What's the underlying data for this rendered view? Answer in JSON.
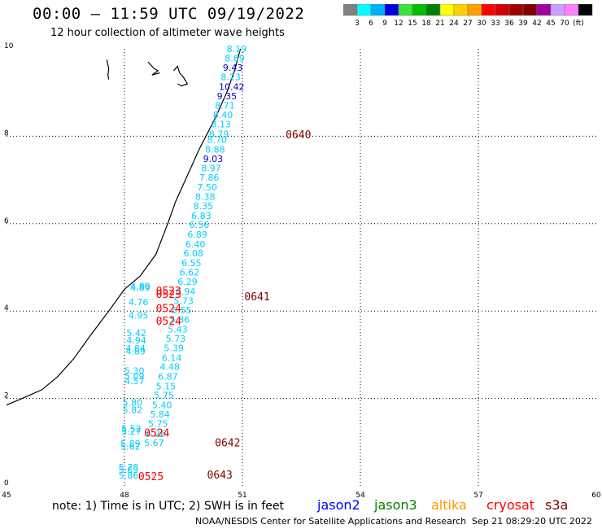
{
  "header": {
    "title": "00:00 – 11:59 UTC 09/19/2022",
    "subtitle": "12 hour collection of altimeter wave heights"
  },
  "colorbar": {
    "colors": [
      "#808080",
      "#00ffff",
      "#00b0ff",
      "#0000e0",
      "#40e040",
      "#00c000",
      "#008000",
      "#ffff00",
      "#ffd000",
      "#ffa000",
      "#ff0000",
      "#d00000",
      "#a00000",
      "#800000",
      "#a000a0",
      "#c8a0ff",
      "#ff80ff",
      "#000000"
    ],
    "labels": [
      "3",
      "6",
      "9",
      "12",
      "15",
      "18",
      "21",
      "24",
      "27",
      "30",
      "33",
      "36",
      "39",
      "42",
      "45",
      "70",
      "(ft)"
    ]
  },
  "footer": {
    "note": "note: 1) Time is in UTC; 2) SWH is in feet",
    "legend": [
      {
        "name": "jason2",
        "color": "#0000ff"
      },
      {
        "name": "jason3",
        "color": "#008000"
      },
      {
        "name": "altika",
        "color": "#ff9900"
      },
      {
        "name": "cryosat",
        "color": "#ff0000"
      },
      {
        "name": "s3a",
        "color": "#800000"
      }
    ],
    "credit": "NOAA/NESDIS Center for Satellite Applications and Research",
    "timestamp": "Sep 21 08:29:20 UTC 2022"
  },
  "chart_data": {
    "type": "scatter",
    "xlim": [
      45,
      60
    ],
    "ylim": [
      0,
      10
    ],
    "x_ticks": [
      "45",
      "48",
      "51",
      "54",
      "57",
      "60"
    ],
    "y_ticks": [
      "0",
      "2",
      "4",
      "6",
      "8",
      "10"
    ],
    "grid": true,
    "points": [
      {
        "x": 50.6,
        "y": 9.93,
        "label": "8.19",
        "color": "#00ccff"
      },
      {
        "x": 50.55,
        "y": 9.71,
        "label": "8.69",
        "color": "#00ccff"
      },
      {
        "x": 50.5,
        "y": 9.5,
        "label": "9.43",
        "color": "#0000cc"
      },
      {
        "x": 50.45,
        "y": 9.28,
        "label": "8.23",
        "color": "#00ccff"
      },
      {
        "x": 50.4,
        "y": 9.06,
        "label": "10.42",
        "color": "#0000cc"
      },
      {
        "x": 50.35,
        "y": 8.85,
        "label": "9.35",
        "color": "#0000cc"
      },
      {
        "x": 50.3,
        "y": 8.63,
        "label": "8.71",
        "color": "#00ccff"
      },
      {
        "x": 50.25,
        "y": 8.42,
        "label": "8.40",
        "color": "#00ccff"
      },
      {
        "x": 50.2,
        "y": 8.2,
        "label": "8.13",
        "color": "#00ccff"
      },
      {
        "x": 50.15,
        "y": 7.98,
        "label": "8.79",
        "color": "#00ccff"
      },
      {
        "x": 50.1,
        "y": 7.85,
        "label": "8.70",
        "color": "#00ccff"
      },
      {
        "x": 50.05,
        "y": 7.63,
        "label": "8.88",
        "color": "#00ccff"
      },
      {
        "x": 50.0,
        "y": 7.41,
        "label": "9.03",
        "color": "#0000cc"
      },
      {
        "x": 49.95,
        "y": 7.2,
        "label": "8.97",
        "color": "#00ccff"
      },
      {
        "x": 49.9,
        "y": 6.98,
        "label": "7.86",
        "color": "#00ccff"
      },
      {
        "x": 49.85,
        "y": 6.76,
        "label": "7.50",
        "color": "#00ccff"
      },
      {
        "x": 49.8,
        "y": 6.55,
        "label": "8.38",
        "color": "#00ccff"
      },
      {
        "x": 49.75,
        "y": 6.33,
        "label": "8.35",
        "color": "#00ccff"
      },
      {
        "x": 49.7,
        "y": 6.11,
        "label": "6.83",
        "color": "#00ccff"
      },
      {
        "x": 49.65,
        "y": 5.9,
        "label": "6.56",
        "color": "#00ccff"
      },
      {
        "x": 49.6,
        "y": 5.68,
        "label": "6.89",
        "color": "#00ccff"
      },
      {
        "x": 49.55,
        "y": 5.46,
        "label": "6.40",
        "color": "#00ccff"
      },
      {
        "x": 49.5,
        "y": 5.25,
        "label": "6.08",
        "color": "#00ccff"
      },
      {
        "x": 49.45,
        "y": 5.03,
        "label": "6.55",
        "color": "#00ccff"
      },
      {
        "x": 49.4,
        "y": 4.81,
        "label": "6.62",
        "color": "#00ccff"
      },
      {
        "x": 49.35,
        "y": 4.6,
        "label": "6.29",
        "color": "#00ccff"
      },
      {
        "x": 49.3,
        "y": 4.38,
        "label": "6.94",
        "color": "#00ccff"
      },
      {
        "x": 49.25,
        "y": 4.16,
        "label": "5.73",
        "color": "#00ccff"
      },
      {
        "x": 49.2,
        "y": 3.95,
        "label": "5.55",
        "color": "#00ccff"
      },
      {
        "x": 49.15,
        "y": 3.73,
        "label": "5.86",
        "color": "#00ccff"
      },
      {
        "x": 49.1,
        "y": 3.51,
        "label": "5.43",
        "color": "#00ccff"
      },
      {
        "x": 49.05,
        "y": 3.3,
        "label": "5.73",
        "color": "#00ccff"
      },
      {
        "x": 49.0,
        "y": 3.08,
        "label": "5.39",
        "color": "#00ccff"
      },
      {
        "x": 48.95,
        "y": 2.86,
        "label": "6.14",
        "color": "#00ccff"
      },
      {
        "x": 48.9,
        "y": 2.65,
        "label": "4.48",
        "color": "#00ccff"
      },
      {
        "x": 48.85,
        "y": 2.43,
        "label": "6.87",
        "color": "#00ccff"
      },
      {
        "x": 48.8,
        "y": 2.21,
        "label": "5.15",
        "color": "#00ccff"
      },
      {
        "x": 48.75,
        "y": 2.0,
        "label": "5.75",
        "color": "#00ccff"
      },
      {
        "x": 48.7,
        "y": 1.78,
        "label": "5.40",
        "color": "#00ccff"
      },
      {
        "x": 48.65,
        "y": 1.56,
        "label": "5.84",
        "color": "#00ccff"
      },
      {
        "x": 48.6,
        "y": 1.35,
        "label": "5.75",
        "color": "#00ccff"
      },
      {
        "x": 48.55,
        "y": 1.13,
        "label": "6.26",
        "color": "#00ccff"
      },
      {
        "x": 48.5,
        "y": 0.91,
        "label": "5.67",
        "color": "#00ccff"
      },
      {
        "x": 48.15,
        "y": 4.5,
        "label": "4.89",
        "color": "#00ccff"
      },
      {
        "x": 48.15,
        "y": 4.46,
        "label": "4.89",
        "color": "#00ccff"
      },
      {
        "x": 48.1,
        "y": 4.13,
        "label": "4.76",
        "color": "#00ccff"
      },
      {
        "x": 48.1,
        "y": 3.83,
        "label": "4.95",
        "color": "#00ccff"
      },
      {
        "x": 48.05,
        "y": 3.43,
        "label": "5.42",
        "color": "#00ccff"
      },
      {
        "x": 48.05,
        "y": 3.26,
        "label": "4.94",
        "color": "#00ccff"
      },
      {
        "x": 48.03,
        "y": 3.07,
        "label": "4.84",
        "color": "#00ccff"
      },
      {
        "x": 48.03,
        "y": 3.01,
        "label": "4.89",
        "color": "#00ccff"
      },
      {
        "x": 48.0,
        "y": 2.56,
        "label": "5.30",
        "color": "#00ccff"
      },
      {
        "x": 48.0,
        "y": 2.44,
        "label": "5.09",
        "color": "#00ccff"
      },
      {
        "x": 48.0,
        "y": 2.33,
        "label": "4.57",
        "color": "#00ccff"
      },
      {
        "x": 47.95,
        "y": 1.83,
        "label": "5.80",
        "color": "#00ccff"
      },
      {
        "x": 47.95,
        "y": 1.67,
        "label": "5.82",
        "color": "#00ccff"
      },
      {
        "x": 47.92,
        "y": 1.24,
        "label": "5.52",
        "color": "#00ccff"
      },
      {
        "x": 47.92,
        "y": 1.17,
        "label": "5.27",
        "color": "#00ccff"
      },
      {
        "x": 47.9,
        "y": 0.89,
        "label": "5.89",
        "color": "#00ccff"
      },
      {
        "x": 47.9,
        "y": 0.83,
        "label": "5.62",
        "color": "#00ccff"
      },
      {
        "x": 47.85,
        "y": 0.35,
        "label": "5.78",
        "color": "#00ccff"
      },
      {
        "x": 47.85,
        "y": 0.3,
        "label": "5.69",
        "color": "#00ccff"
      },
      {
        "x": 47.85,
        "y": 0.17,
        "label": "5.86",
        "color": "#00ccff"
      }
    ],
    "time_labels": [
      {
        "x": 52.1,
        "y": 7.95,
        "label": "0640",
        "color": "#800000"
      },
      {
        "x": 51.05,
        "y": 4.25,
        "label": "0641",
        "color": "#800000"
      },
      {
        "x": 50.3,
        "y": 0.9,
        "label": "0642",
        "color": "#800000"
      },
      {
        "x": 50.1,
        "y": 0.17,
        "label": "0643",
        "color": "#800000"
      },
      {
        "x": 48.8,
        "y": 4.38,
        "label": "0523",
        "color": "#ff0000"
      },
      {
        "x": 48.8,
        "y": 4.3,
        "label": "0523",
        "color": "#ff0000"
      },
      {
        "x": 48.8,
        "y": 3.98,
        "label": "0524",
        "color": "#ff0000"
      },
      {
        "x": 48.8,
        "y": 3.69,
        "label": "0524",
        "color": "#ff0000"
      },
      {
        "x": 48.5,
        "y": 1.13,
        "label": "0524",
        "color": "#ff0000"
      },
      {
        "x": 48.35,
        "y": 0.13,
        "label": "0525",
        "color": "#ff0000"
      }
    ],
    "coastline": [
      [
        45.0,
        1.85
      ],
      [
        45.4,
        2.0
      ],
      [
        45.9,
        2.2
      ],
      [
        46.3,
        2.5
      ],
      [
        46.7,
        2.9
      ],
      [
        47.1,
        3.4
      ],
      [
        47.6,
        4.0
      ],
      [
        48.0,
        4.5
      ],
      [
        48.4,
        4.8
      ],
      [
        48.8,
        5.3
      ],
      [
        49.1,
        6.0
      ],
      [
        49.3,
        6.5
      ],
      [
        49.6,
        7.1
      ],
      [
        49.9,
        7.7
      ],
      [
        50.3,
        8.4
      ],
      [
        50.6,
        9.0
      ],
      [
        50.8,
        9.5
      ],
      [
        50.95,
        10.0
      ]
    ],
    "islands": [
      [
        [
          47.55,
          9.75
        ],
        [
          47.6,
          9.55
        ],
        [
          47.58,
          9.4
        ],
        [
          47.6,
          9.3
        ]
      ],
      [
        [
          48.6,
          9.7
        ],
        [
          48.75,
          9.55
        ],
        [
          48.85,
          9.5
        ],
        [
          48.7,
          9.4
        ],
        [
          48.9,
          9.45
        ]
      ],
      [
        [
          49.25,
          9.5
        ],
        [
          49.35,
          9.6
        ],
        [
          49.4,
          9.45
        ],
        [
          49.5,
          9.35
        ],
        [
          49.6,
          9.2
        ],
        [
          49.45,
          9.15
        ],
        [
          49.35,
          9.2
        ]
      ]
    ]
  }
}
